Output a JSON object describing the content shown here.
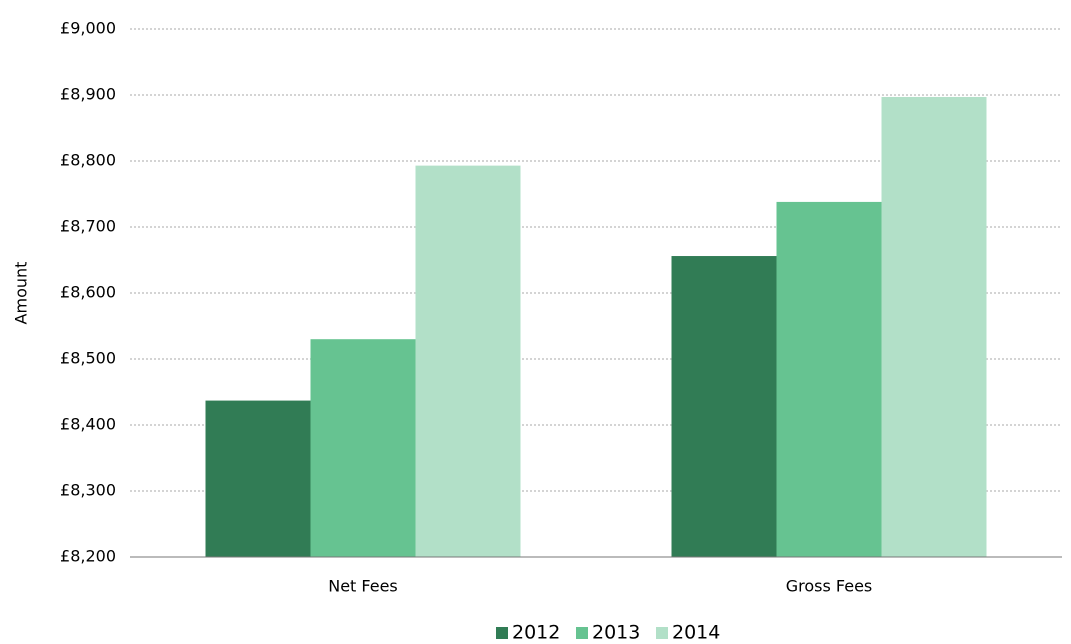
{
  "chart_data": {
    "type": "bar",
    "y_label": "Amount",
    "categories": [
      "Net Fees",
      "Gross Fees"
    ],
    "series": [
      {
        "name": "2012",
        "color": "#317c55",
        "values": [
          8437,
          8656
        ]
      },
      {
        "name": "2013",
        "color": "#66c391",
        "values": [
          8530,
          8738
        ]
      },
      {
        "name": "2014",
        "color": "#b2e0c8",
        "values": [
          8793,
          8897
        ]
      }
    ],
    "ylim": [
      8200,
      9000
    ],
    "yticks": [
      {
        "value": 8200,
        "label": "£8,200"
      },
      {
        "value": 8300,
        "label": "£8,300"
      },
      {
        "value": 8400,
        "label": "£8,400"
      },
      {
        "value": 8500,
        "label": "£8,500"
      },
      {
        "value": 8600,
        "label": "£8,600"
      },
      {
        "value": 8700,
        "label": "£8,700"
      },
      {
        "value": 8800,
        "label": "£8,800"
      },
      {
        "value": 8900,
        "label": "£8,900"
      },
      {
        "value": 9000,
        "label": "£9,000"
      }
    ],
    "grid": true,
    "legend": "bottom"
  }
}
